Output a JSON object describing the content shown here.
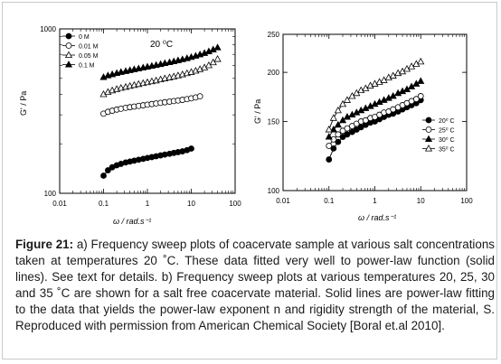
{
  "caption": {
    "label": "Figure 21:",
    "text": " a) Frequency sweep plots of coacervate sample at various salt concentrations taken at temperatures 20 ˚C. These data fitted very well to power-law function (solid lines).  See text for details. b) Frequency sweep plots at various temperatures 20, 25, 30 and 35 ˚C are shown for a salt free coacervate material. Solid lines are power-law fitting to the data that yields the power-law exponent n and rigidity strength of the material, S. Reproduced with permission from American Chemical Society [Boral et.al 2010]."
  },
  "chart_data": [
    {
      "type": "line",
      "title": "",
      "annotation": "20 ⁰C",
      "xlabel": "ω / rad.s⁻¹",
      "ylabel": "G' / Pa",
      "x_scale": "log",
      "y_scale": "log",
      "xlim": [
        0.01,
        100
      ],
      "ylim": [
        100,
        1000
      ],
      "xticks": [
        "0.01",
        "0.1",
        "1",
        "10",
        "100"
      ],
      "yticks": [
        "100",
        "1000"
      ],
      "legend_position": "top-left",
      "series": [
        {
          "name": "0 M",
          "marker": "filled-circle",
          "x": [
            0.1,
            0.126,
            0.158,
            0.2,
            0.25,
            0.32,
            0.4,
            0.5,
            0.63,
            0.8,
            1.0,
            1.26,
            1.58,
            2.0,
            2.5,
            3.2,
            4.0,
            5.0,
            6.3,
            8.0,
            10.0
          ],
          "y": [
            128,
            138,
            144,
            148,
            151,
            154,
            156,
            158,
            160,
            162,
            164,
            166,
            168,
            170,
            172,
            174,
            176,
            178,
            180,
            183,
            187
          ]
        },
        {
          "name": "0.01 M",
          "marker": "open-circle",
          "x": [
            0.1,
            0.126,
            0.158,
            0.2,
            0.25,
            0.32,
            0.4,
            0.5,
            0.63,
            0.8,
            1.0,
            1.26,
            1.58,
            2.0,
            2.5,
            3.2,
            4.0,
            5.0,
            6.3,
            8.0,
            10.0,
            12.6,
            15.8
          ],
          "y": [
            305,
            313,
            318,
            323,
            327,
            331,
            334,
            337,
            340,
            343,
            346,
            349,
            352,
            355,
            358,
            361,
            364,
            367,
            370,
            374,
            378,
            383,
            389
          ]
        },
        {
          "name": "0.05 M",
          "marker": "open-triangle",
          "x": [
            0.1,
            0.126,
            0.158,
            0.2,
            0.25,
            0.32,
            0.4,
            0.5,
            0.63,
            0.8,
            1.0,
            1.26,
            1.58,
            2.0,
            2.5,
            3.2,
            4.0,
            5.0,
            6.3,
            8.0,
            10.0,
            12.6,
            15.8,
            20.0,
            25.1,
            31.6,
            39.8
          ],
          "y": [
            400,
            413,
            422,
            430,
            437,
            443,
            449,
            455,
            461,
            467,
            473,
            479,
            485,
            492,
            499,
            506,
            513,
            520,
            528,
            537,
            546,
            556,
            568,
            582,
            600,
            625,
            655
          ]
        },
        {
          "name": "0.1 M",
          "marker": "filled-triangle",
          "x": [
            0.1,
            0.126,
            0.158,
            0.2,
            0.25,
            0.32,
            0.4,
            0.5,
            0.63,
            0.8,
            1.0,
            1.26,
            1.58,
            2.0,
            2.5,
            3.2,
            4.0,
            5.0,
            6.3,
            8.0,
            10.0,
            12.6,
            15.8,
            20.0,
            25.1,
            31.6,
            39.8
          ],
          "y": [
            508,
            520,
            529,
            538,
            546,
            553,
            560,
            567,
            574,
            581,
            588,
            595,
            602,
            610,
            618,
            626,
            634,
            643,
            652,
            662,
            673,
            685,
            698,
            712,
            729,
            748,
            770
          ]
        }
      ]
    },
    {
      "type": "line",
      "title": "",
      "xlabel": "ω / rad.s⁻¹",
      "ylabel": "G' / Pa",
      "x_scale": "log",
      "y_scale": "log",
      "xlim": [
        0.01,
        100
      ],
      "ylim": [
        100,
        250
      ],
      "xticks": [
        "0.01",
        "0.1",
        "1",
        "10",
        "100"
      ],
      "yticks": [
        "100",
        "150",
        "200",
        "250"
      ],
      "legend_position": "bottom-right",
      "series": [
        {
          "name": "20⁰ C",
          "marker": "filled-circle",
          "x": [
            0.1,
            0.126,
            0.158,
            0.2,
            0.25,
            0.32,
            0.4,
            0.5,
            0.63,
            0.8,
            1.0,
            1.26,
            1.58,
            2.0,
            2.5,
            3.2,
            4.0,
            5.0,
            6.3,
            8.0,
            10.0
          ],
          "y": [
            120,
            128,
            133,
            137,
            139,
            141,
            143,
            145,
            147,
            149,
            150,
            152,
            154,
            156,
            157,
            159,
            161,
            163,
            165,
            167,
            170
          ]
        },
        {
          "name": "25⁰ C",
          "marker": "open-circle",
          "x": [
            0.1,
            0.126,
            0.158,
            0.2,
            0.25,
            0.32,
            0.4,
            0.5,
            0.63,
            0.8,
            1.0,
            1.26,
            1.58,
            2.0,
            2.5,
            3.2,
            4.0,
            5.0,
            6.3,
            8.0,
            10.0
          ],
          "y": [
            130,
            135,
            139,
            142,
            144,
            146,
            148,
            150,
            151,
            153,
            154,
            156,
            158,
            159,
            161,
            163,
            165,
            167,
            169,
            171,
            174
          ]
        },
        {
          "name": "30⁰ C",
          "marker": "filled-triangle",
          "x": [
            0.1,
            0.126,
            0.158,
            0.2,
            0.25,
            0.32,
            0.4,
            0.5,
            0.63,
            0.8,
            1.0,
            1.26,
            1.58,
            2.0,
            2.5,
            3.2,
            4.0,
            5.0,
            6.3,
            8.0,
            10.0
          ],
          "y": [
            137,
            143,
            147,
            151,
            154,
            156,
            158,
            160,
            162,
            164,
            166,
            168,
            170,
            172,
            174,
            177,
            179,
            181,
            184,
            187,
            190
          ]
        },
        {
          "name": "35⁰ C",
          "marker": "open-triangle",
          "x": [
            0.1,
            0.126,
            0.158,
            0.2,
            0.25,
            0.32,
            0.4,
            0.5,
            0.63,
            0.8,
            1.0,
            1.26,
            1.58,
            2.0,
            2.5,
            3.2,
            4.0,
            5.0,
            6.3,
            8.0,
            10.0
          ],
          "y": [
            143,
            153,
            160,
            166,
            170,
            174,
            177,
            180,
            182,
            185,
            187,
            189,
            191,
            194,
            196,
            199,
            201,
            204,
            207,
            210,
            213
          ]
        }
      ]
    }
  ]
}
